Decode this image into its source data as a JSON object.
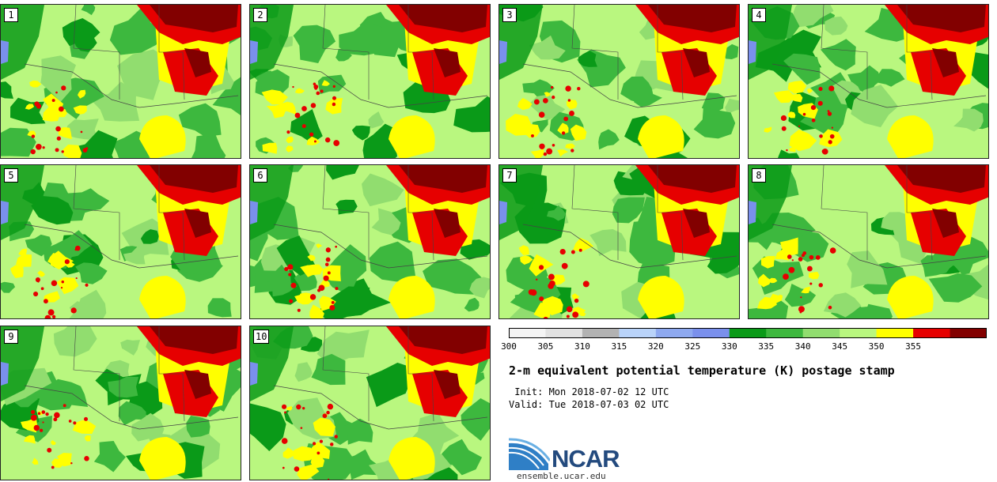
{
  "panels": [
    {
      "label": "1"
    },
    {
      "label": "2"
    },
    {
      "label": "3"
    },
    {
      "label": "4"
    },
    {
      "label": "5"
    },
    {
      "label": "6"
    },
    {
      "label": "7"
    },
    {
      "label": "8"
    },
    {
      "label": "9"
    },
    {
      "label": "10"
    }
  ],
  "legend": {
    "ticks": [
      "300",
      "305",
      "310",
      "315",
      "320",
      "325",
      "330",
      "335",
      "340",
      "345",
      "350",
      "355"
    ],
    "colors": [
      "#f4f4f4",
      "#e2e2e2",
      "#b2b2b2",
      "#b9d3f9",
      "#8ea9f0",
      "#7a90ec",
      "#0a9a18",
      "#3db83e",
      "#91dd6f",
      "#b9f77f",
      "#ffff00",
      "#e60000",
      "#820000"
    ]
  },
  "title": "2-m equivalent potential temperature (K) postage stamp",
  "init": " Init: Mon 2018-07-02 12 UTC",
  "valid": "Valid: Tue 2018-07-03 02 UTC",
  "logo": {
    "name": "NCAR",
    "url": "ensemble.ucar.edu"
  },
  "map_colors": {
    "land_base": "#b9f77f",
    "light_green": "#91dd6f",
    "green": "#3db83e",
    "dark_green": "#0a9a18",
    "yellow": "#ffff00",
    "red": "#e60000",
    "dark_red": "#820000",
    "blue": "#7a90ec",
    "border": "#444444"
  }
}
